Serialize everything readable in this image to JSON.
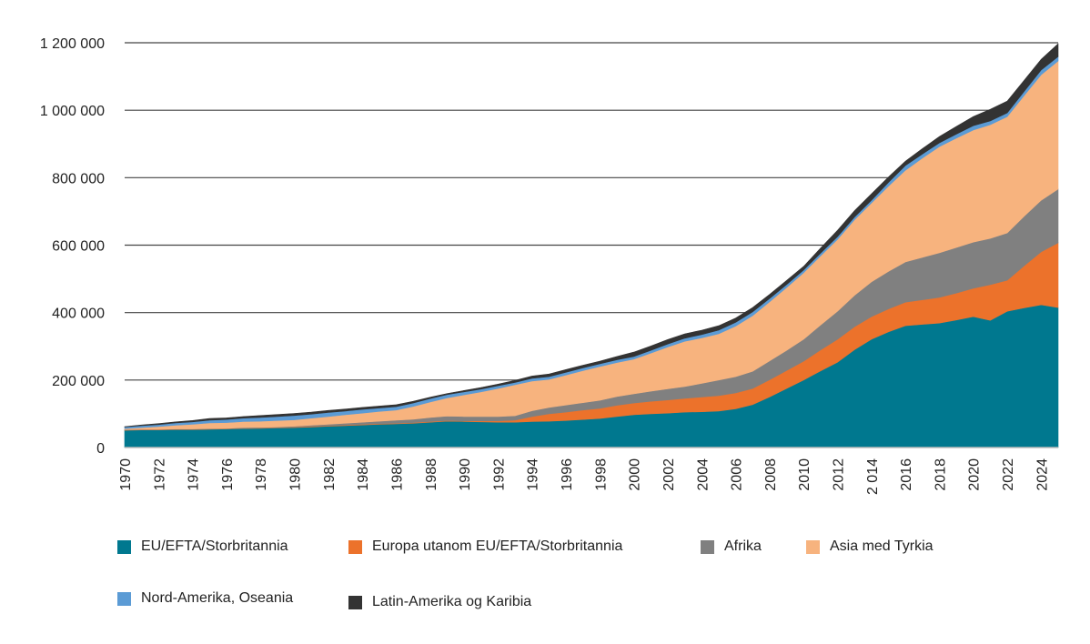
{
  "chart_data": {
    "type": "area",
    "stacked": true,
    "title": "",
    "xlabel": "",
    "ylabel": "",
    "ylim": [
      0,
      1200000
    ],
    "yticks": [
      0,
      200000,
      400000,
      600000,
      800000,
      1000000,
      1200000
    ],
    "ytick_labels": [
      "0",
      "200 000",
      "400 000",
      "600 000",
      "800 000",
      "1 000 000",
      "1 200 000"
    ],
    "xtick_labels": [
      "1970",
      "1972",
      "1974",
      "1976",
      "1978",
      "1980",
      "1982",
      "1984",
      "1986",
      "1988",
      "1990",
      "1992",
      "1994",
      "1996",
      "1998",
      "2000",
      "2002",
      "2004",
      "2006",
      "2008",
      "2010",
      "2012",
      "2 014",
      "2016",
      "2018",
      "2020",
      "2022",
      "2024"
    ],
    "grid": true,
    "legend_position": "bottom",
    "x": [
      1970,
      1971,
      1972,
      1973,
      1974,
      1975,
      1976,
      1977,
      1978,
      1979,
      1980,
      1981,
      1982,
      1983,
      1984,
      1985,
      1986,
      1987,
      1988,
      1989,
      1990,
      1991,
      1992,
      1993,
      1994,
      1995,
      1996,
      1997,
      1998,
      1999,
      2000,
      2001,
      2002,
      2003,
      2004,
      2005,
      2006,
      2007,
      2008,
      2009,
      2010,
      2011,
      2012,
      2013,
      2014,
      2015,
      2016,
      2017,
      2018,
      2019,
      2020,
      2021,
      2022,
      2023,
      2024,
      2025
    ],
    "series": [
      {
        "name": "EU/EFTA/Storbritannia",
        "color": "#00788f",
        "values": [
          51000,
          52000,
          52000,
          53000,
          53000,
          54000,
          55000,
          56000,
          57000,
          58000,
          59000,
          61000,
          63000,
          65000,
          67000,
          69000,
          70000,
          72000,
          75000,
          78000,
          77000,
          76000,
          75000,
          75000,
          77000,
          78000,
          80000,
          83000,
          86000,
          92000,
          97000,
          100000,
          102000,
          105000,
          106000,
          108000,
          115000,
          127000,
          150000,
          175000,
          200000,
          227000,
          253000,
          290000,
          321000,
          343000,
          361000,
          365000,
          369000,
          378000,
          388000,
          377000,
          404000,
          414000,
          423000,
          415000
        ]
      },
      {
        "name": "Europa utanom EU/EFTA/Storbritannia",
        "color": "#ec722b",
        "values": [
          1000,
          1000,
          1000,
          1000,
          1000,
          1000,
          1000,
          1000,
          1000,
          1000,
          2000,
          2000,
          2000,
          2000,
          2000,
          2000,
          2000,
          2000,
          2000,
          2000,
          2000,
          3000,
          4000,
          6000,
          15000,
          22000,
          25000,
          28000,
          30000,
          33000,
          35000,
          37000,
          39000,
          41000,
          44000,
          46000,
          47000,
          48000,
          51000,
          53000,
          56000,
          62000,
          68000,
          68000,
          67000,
          68000,
          70000,
          73000,
          76000,
          80000,
          84000,
          106000,
          92000,
          125000,
          157000,
          192000
        ]
      },
      {
        "name": "Afrika",
        "color": "#808080",
        "values": [
          1000,
          1000,
          1000,
          1000,
          1000,
          1000,
          1000,
          2000,
          2000,
          2000,
          2000,
          3000,
          4000,
          5000,
          6000,
          7000,
          9000,
          10000,
          12000,
          13000,
          13000,
          13000,
          13000,
          13000,
          17000,
          19000,
          21000,
          22000,
          24000,
          26000,
          27000,
          30000,
          33000,
          35000,
          40000,
          46000,
          48000,
          51000,
          56000,
          60000,
          65000,
          74000,
          83000,
          93000,
          103000,
          111000,
          119000,
          126000,
          132000,
          135000,
          137000,
          137000,
          140000,
          147000,
          153000,
          159000
        ]
      },
      {
        "name": "Asia med Tyrkia",
        "color": "#f7b37e",
        "values": [
          3000,
          5000,
          8000,
          11000,
          14000,
          17000,
          17000,
          18000,
          18000,
          19000,
          19000,
          21000,
          23000,
          25000,
          27000,
          29000,
          30000,
          38000,
          46000,
          54000,
          64000,
          73000,
          83000,
          92000,
          88000,
          83000,
          89000,
          95000,
          100000,
          101000,
          103000,
          113000,
          124000,
          134000,
          135000,
          137000,
          150000,
          165000,
          175000,
          186000,
          197000,
          205000,
          213000,
          224000,
          234000,
          253000,
          272000,
          294000,
          315000,
          324000,
          332000,
          337000,
          345000,
          358000,
          372000,
          380000
        ]
      },
      {
        "name": "Nord-Amerika, Oseania",
        "color": "#5b9bd5",
        "values": [
          5000,
          6000,
          6000,
          7000,
          7000,
          8000,
          9000,
          10000,
          11000,
          12000,
          13000,
          12000,
          12000,
          11000,
          11000,
          10000,
          10000,
          10000,
          10000,
          10000,
          9000,
          8000,
          8000,
          7000,
          8000,
          8000,
          8000,
          8000,
          8000,
          8000,
          8000,
          8000,
          9000,
          9000,
          10000,
          11000,
          11000,
          11000,
          10000,
          9000,
          8000,
          8000,
          8000,
          8000,
          8000,
          11000,
          14000,
          12000,
          11000,
          12000,
          13000,
          11000,
          11000,
          12000,
          14000,
          13000
        ]
      },
      {
        "name": "Latin-Amerika og Karibia",
        "color": "#333333",
        "values": [
          1000,
          2000,
          3000,
          3000,
          4000,
          5000,
          5000,
          5000,
          6000,
          6000,
          6000,
          6000,
          6000,
          6000,
          6000,
          6000,
          6000,
          5000,
          4000,
          3000,
          4000,
          5000,
          5000,
          6000,
          7000,
          8000,
          8000,
          8000,
          8000,
          10000,
          13000,
          13000,
          13000,
          13000,
          13000,
          13000,
          13000,
          13000,
          12000,
          12000,
          11000,
          15000,
          19000,
          19000,
          19000,
          16000,
          13000,
          16000,
          19000,
          23000,
          27000,
          35000,
          35000,
          33000,
          32000,
          38000
        ]
      }
    ]
  }
}
